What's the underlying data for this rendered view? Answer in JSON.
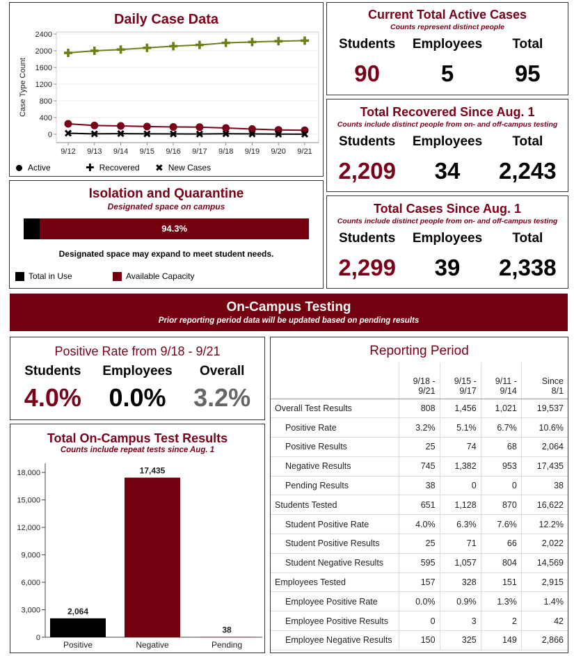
{
  "colors": {
    "maroon": "#7a0019",
    "olive": "#6e7d16",
    "gray": "#666666",
    "black": "#000000"
  },
  "daily": {
    "title": "Daily Case Data",
    "ylabel": "Case Type Count",
    "legend": [
      {
        "label": "Active",
        "icon": "circle-icon"
      },
      {
        "label": "Recovered",
        "icon": "plus-icon"
      },
      {
        "label": "New Cases",
        "icon": "x-icon"
      }
    ]
  },
  "isolation": {
    "title": "Isolation and Quarantine",
    "subtitle": "Designated space on campus",
    "bar_label": "94.3%",
    "available_fraction": 0.943,
    "note": "Designated space may expand to meet student needs.",
    "legend_in_use": "Total in Use",
    "legend_available": "Available Capacity"
  },
  "active": {
    "title": "Current Total Active Cases",
    "subtitle": "Counts represent distinct people",
    "labels": [
      "Students",
      "Employees",
      "Total"
    ],
    "values": [
      "90",
      "5",
      "95"
    ]
  },
  "recovered": {
    "title": "Total Recovered Since Aug. 1",
    "subtitle": "Counts include distinct people from on- and off-campus testing",
    "labels": [
      "Students",
      "Employees",
      "Total"
    ],
    "values": [
      "2,209",
      "34",
      "2,243"
    ]
  },
  "total_cases": {
    "title": "Total Cases Since Aug. 1",
    "subtitle": "Counts include distinct people from on- and off-campus testing",
    "labels": [
      "Students",
      "Employees",
      "Total"
    ],
    "values": [
      "2,299",
      "39",
      "2,338"
    ]
  },
  "banner": {
    "title": "On-Campus Testing",
    "subtitle": "Prior reporting period data will be updated based on pending results"
  },
  "positive_rate": {
    "title": "Positive Rate from 9/18 - 9/21",
    "labels": [
      "Students",
      "Employees",
      "Overall"
    ],
    "values": [
      "4.0%",
      "0.0%",
      "3.2%"
    ]
  },
  "test_results": {
    "title": "Total On-Campus Test Results",
    "subtitle": "Counts include repeat tests since Aug. 1"
  },
  "reporting": {
    "title": "Reporting Period",
    "headers": [
      "9/18 -\n9/21",
      "9/15 -\n9/17",
      "9/11 -\n9/14",
      "Since\n8/1"
    ],
    "rows": [
      {
        "label": "Overall Test Results",
        "indent": false,
        "values": [
          "808",
          "1,456",
          "1,021",
          "19,537"
        ]
      },
      {
        "label": "Positive Rate",
        "indent": true,
        "values": [
          "3.2%",
          "5.1%",
          "6.7%",
          "10.6%"
        ]
      },
      {
        "label": "Positive Results",
        "indent": true,
        "values": [
          "25",
          "74",
          "68",
          "2,064"
        ]
      },
      {
        "label": "Negative Results",
        "indent": true,
        "values": [
          "745",
          "1,382",
          "953",
          "17,435"
        ]
      },
      {
        "label": "Pending Results",
        "indent": true,
        "values": [
          "38",
          "0",
          "0",
          "38"
        ]
      },
      {
        "label": "Students Tested",
        "indent": false,
        "values": [
          "651",
          "1,128",
          "870",
          "16,622"
        ]
      },
      {
        "label": "Student Positive Rate",
        "indent": true,
        "values": [
          "4.0%",
          "6.3%",
          "7.6%",
          "12.2%"
        ]
      },
      {
        "label": "Student Positive Results",
        "indent": true,
        "values": [
          "25",
          "71",
          "66",
          "2,022"
        ]
      },
      {
        "label": "Student Negative Results",
        "indent": true,
        "values": [
          "595",
          "1,057",
          "804",
          "14,569"
        ]
      },
      {
        "label": "Employees Tested",
        "indent": false,
        "values": [
          "157",
          "328",
          "151",
          "2,915"
        ]
      },
      {
        "label": "Employee Positive Rate",
        "indent": true,
        "values": [
          "0.0%",
          "0.9%",
          "1.3%",
          "1.4%"
        ]
      },
      {
        "label": "Employee Positive Results",
        "indent": true,
        "values": [
          "0",
          "3",
          "2",
          "42"
        ]
      },
      {
        "label": "Employee Negative Results",
        "indent": true,
        "values": [
          "150",
          "325",
          "149",
          "2,866"
        ]
      }
    ]
  },
  "chart_data": [
    {
      "type": "line",
      "title": "Daily Case Data",
      "ylabel": "Case Type Count",
      "xlabel": "",
      "categories": [
        "9/12",
        "9/13",
        "9/14",
        "9/15",
        "9/16",
        "9/17",
        "9/18",
        "9/19",
        "9/20",
        "9/21"
      ],
      "ylim": [
        -200,
        2450
      ],
      "yticks": [
        0,
        400,
        800,
        1200,
        1600,
        2000,
        2400
      ],
      "series": [
        {
          "name": "Active",
          "marker": "circle",
          "values": [
            250,
            210,
            200,
            185,
            175,
            170,
            150,
            125,
            105,
            95
          ]
        },
        {
          "name": "Recovered",
          "marker": "plus",
          "values": [
            1950,
            2000,
            2030,
            2070,
            2110,
            2140,
            2190,
            2210,
            2230,
            2243
          ]
        },
        {
          "name": "New Cases",
          "marker": "x",
          "values": [
            25,
            10,
            15,
            10,
            8,
            6,
            12,
            8,
            4,
            3
          ]
        }
      ]
    },
    {
      "type": "bar",
      "title": "Total On-Campus Test Results",
      "categories": [
        "Positive",
        "Negative",
        "Pending"
      ],
      "values": [
        2064,
        17435,
        38
      ],
      "value_labels": [
        "2,064",
        "17,435",
        "38"
      ],
      "ylim": [
        0,
        19000
      ],
      "yticks": [
        0,
        3000,
        6000,
        9000,
        12000,
        15000,
        18000
      ],
      "ytick_labels": [
        "0",
        "3,000",
        "6,000",
        "9,000",
        "12,000",
        "15,000",
        "18,000"
      ]
    }
  ]
}
